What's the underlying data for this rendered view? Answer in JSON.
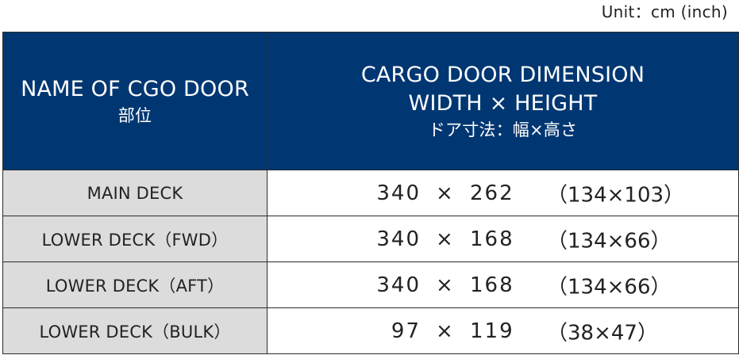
{
  "unit_note": "Unit：cm (inch)",
  "header": {
    "name_label_en": "NAME OF CGO DOOR",
    "name_label_jp": "部位",
    "dimension_label_line1": "CARGO DOOR DIMENSION",
    "dimension_label_line2": "WIDTH × HEIGHT",
    "dimension_label_jp": "ドア寸法：幅×高さ"
  },
  "rows": [
    {
      "name": "MAIN DECK",
      "width": "340",
      "times": "×",
      "height": "262",
      "inches": "（134×103）"
    },
    {
      "name": "LOWER DECK（FWD）",
      "width": "340",
      "times": "×",
      "height": "168",
      "inches": "（134×66）"
    },
    {
      "name": "LOWER DECK（AFT）",
      "width": "340",
      "times": "×",
      "height": "168",
      "inches": "（134×66）"
    },
    {
      "name": "LOWER DECK（BULK）",
      "width": "97",
      "times": "×",
      "height": "119",
      "inches": "（38×47）"
    }
  ],
  "colors": {
    "header_bg": "#003772",
    "name_cell_bg": "#dcdcdc",
    "border": "#2b2b2b"
  }
}
